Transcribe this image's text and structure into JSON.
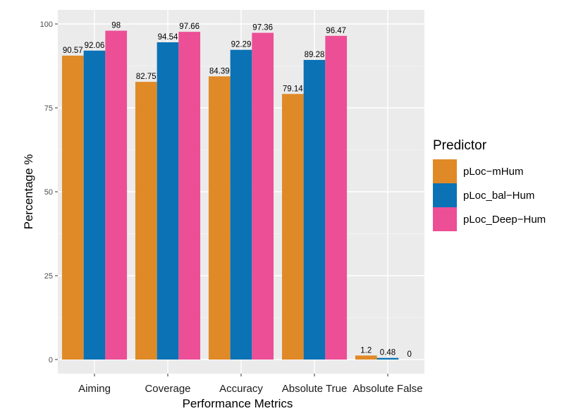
{
  "chart_data": {
    "type": "bar",
    "xlabel": "Performance Metrics",
    "ylabel": "Percentage %",
    "ylim": [
      0,
      100
    ],
    "yticks": [
      0,
      25,
      50,
      75,
      100
    ],
    "grid": true,
    "legend_title": "Predictor",
    "legend_position": "right",
    "categories": [
      "Aiming",
      "Coverage",
      "Accuracy",
      "Absolute True",
      "Absolute False"
    ],
    "series": [
      {
        "name": "pLoc−mHum",
        "color": "#e08a27",
        "values": [
          90.57,
          82.75,
          84.39,
          79.14,
          1.2
        ]
      },
      {
        "name": "pLoc_bal−Hum",
        "color": "#0a72b5",
        "values": [
          92.06,
          94.54,
          92.29,
          89.28,
          0.48
        ]
      },
      {
        "name": "pLoc_Deep−Hum",
        "color": "#ec4f96",
        "values": [
          98,
          97.66,
          97.36,
          96.47,
          0
        ]
      }
    ]
  }
}
